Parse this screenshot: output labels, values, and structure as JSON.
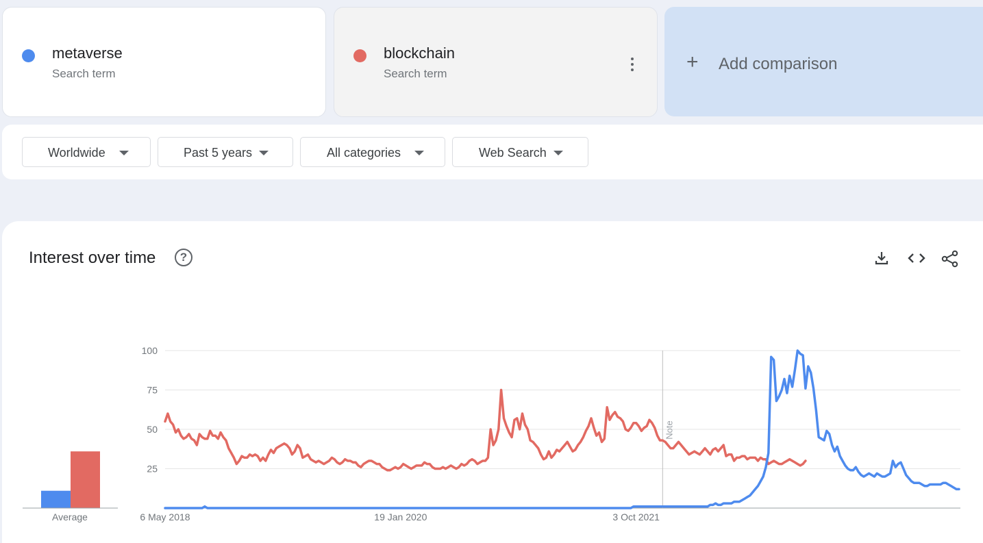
{
  "terms": [
    {
      "name": "metaverse",
      "subtitle": "Search term",
      "color": "#4e8bee"
    },
    {
      "name": "blockchain",
      "subtitle": "Search term",
      "color": "#e26a62"
    }
  ],
  "add_comparison": {
    "label": "Add comparison",
    "icon": "plus-icon"
  },
  "filters": [
    {
      "label": "Worldwide",
      "icon": "caret-down-icon"
    },
    {
      "label": "Past 5 years",
      "icon": "caret-down-icon"
    },
    {
      "label": "All categories",
      "icon": "caret-down-icon"
    },
    {
      "label": "Web Search",
      "icon": "caret-down-icon"
    }
  ],
  "panel": {
    "title": "Interest over time",
    "icons": [
      "help-icon",
      "download-icon",
      "embed-code-icon",
      "share-icon"
    ]
  },
  "chart_data": [
    {
      "type": "bar",
      "categories": [
        "metaverse",
        "blockchain"
      ],
      "values": [
        11,
        36
      ],
      "xlabel": "Average",
      "colors": [
        "#4e8bee",
        "#e26a62"
      ]
    },
    {
      "type": "line",
      "ylim": [
        0,
        100
      ],
      "y_ticks": [
        25,
        50,
        75,
        100
      ],
      "x_tick_labels": [
        "6 May 2018",
        "19 Jan 2020",
        "3 Oct 2021"
      ],
      "x_tick_index": [
        0,
        89,
        178
      ],
      "annotation": {
        "label": "Note",
        "index": 188
      },
      "grid": true,
      "series": [
        {
          "name": "metaverse",
          "color": "#4e8bee",
          "values": [
            0,
            0,
            0,
            0,
            0,
            0,
            0,
            0,
            0,
            0,
            0,
            0,
            0,
            0,
            0,
            1,
            0,
            0,
            0,
            0,
            0,
            0,
            0,
            0,
            0,
            0,
            0,
            0,
            0,
            0,
            0,
            0,
            0,
            0,
            0,
            0,
            0,
            0,
            0,
            0,
            0,
            0,
            0,
            0,
            0,
            0,
            0,
            0,
            0,
            0,
            0,
            0,
            0,
            0,
            0,
            0,
            0,
            0,
            0,
            0,
            0,
            0,
            0,
            0,
            0,
            0,
            0,
            0,
            0,
            0,
            0,
            0,
            0,
            0,
            0,
            0,
            0,
            0,
            0,
            0,
            0,
            0,
            0,
            0,
            0,
            0,
            0,
            0,
            0,
            0,
            0,
            0,
            0,
            0,
            0,
            0,
            0,
            0,
            0,
            0,
            0,
            0,
            0,
            0,
            0,
            0,
            0,
            0,
            0,
            0,
            0,
            0,
            0,
            0,
            0,
            0,
            0,
            0,
            0,
            0,
            0,
            0,
            0,
            0,
            0,
            0,
            0,
            0,
            0,
            0,
            0,
            0,
            0,
            0,
            0,
            0,
            0,
            0,
            0,
            0,
            0,
            0,
            0,
            0,
            0,
            0,
            0,
            0,
            0,
            0,
            0,
            0,
            0,
            0,
            0,
            0,
            0,
            0,
            0,
            0,
            0,
            0,
            0,
            0,
            0,
            0,
            0,
            0,
            0,
            0,
            0,
            0,
            0,
            0,
            0,
            0,
            0,
            1,
            1,
            1,
            1,
            1,
            1,
            1,
            1,
            1,
            1,
            1,
            1,
            1,
            1,
            1,
            1,
            1,
            1,
            1,
            1,
            1,
            1,
            1,
            1,
            1,
            1,
            1,
            1,
            1,
            2,
            2,
            3,
            2,
            2,
            3,
            3,
            3,
            3,
            4,
            4,
            4,
            5,
            6,
            7,
            8,
            10,
            12,
            14,
            17,
            20,
            26,
            35,
            96,
            94,
            68,
            71,
            75,
            82,
            73,
            84,
            77,
            88,
            100,
            98,
            97,
            76,
            90,
            86,
            76,
            62,
            45,
            44,
            43,
            49,
            47,
            40,
            36,
            39,
            33,
            30,
            27,
            25,
            24,
            24,
            26,
            23,
            21,
            20,
            21,
            22,
            21,
            20,
            22,
            21,
            20,
            20,
            21,
            22,
            30,
            26,
            28,
            29,
            25,
            21,
            19,
            17,
            16,
            16,
            16,
            15,
            14,
            14,
            15,
            15,
            15,
            15,
            15,
            16,
            16,
            15,
            14,
            13,
            12,
            12
          ],
          "_note": "Weekly relative interest; values approximated from chart."
        },
        {
          "name": "blockchain",
          "color": "#e26a62",
          "values": [
            55,
            60,
            55,
            53,
            48,
            50,
            46,
            44,
            45,
            47,
            44,
            43,
            40,
            47,
            45,
            44,
            44,
            49,
            46,
            46,
            44,
            48,
            45,
            43,
            38,
            35,
            32,
            28,
            30,
            33,
            32,
            32,
            34,
            33,
            34,
            33,
            30,
            32,
            30,
            34,
            37,
            35,
            38,
            39,
            40,
            41,
            40,
            38,
            34,
            36,
            40,
            38,
            32,
            33,
            34,
            31,
            30,
            29,
            30,
            29,
            28,
            29,
            30,
            32,
            31,
            29,
            28,
            29,
            31,
            30,
            30,
            29,
            29,
            27,
            26,
            28,
            29,
            30,
            30,
            29,
            28,
            28,
            26,
            25,
            24,
            24,
            25,
            26,
            25,
            26,
            28,
            27,
            26,
            25,
            26,
            27,
            27,
            27,
            29,
            28,
            28,
            26,
            25,
            25,
            25,
            26,
            25,
            26,
            27,
            26,
            25,
            26,
            28,
            27,
            28,
            30,
            31,
            30,
            28,
            29,
            30,
            30,
            32,
            50,
            40,
            43,
            50,
            75,
            57,
            52,
            48,
            45,
            56,
            57,
            50,
            60,
            53,
            50,
            43,
            42,
            40,
            38,
            34,
            31,
            32,
            36,
            32,
            34,
            37,
            36,
            38,
            40,
            42,
            39,
            36,
            37,
            40,
            42,
            45,
            49,
            52,
            57,
            51,
            46,
            48,
            42,
            44,
            64,
            56,
            59,
            61,
            58,
            57,
            55,
            50,
            49,
            51,
            54,
            54,
            52,
            49,
            51,
            52,
            56,
            54,
            51,
            46,
            43,
            43,
            42,
            40,
            38,
            38,
            40,
            42,
            40,
            38,
            36,
            34,
            35,
            36,
            35,
            34,
            36,
            38,
            36,
            34,
            37,
            38,
            36,
            38,
            40,
            33,
            34,
            34,
            30,
            32,
            32,
            33,
            33,
            31,
            32,
            32,
            32,
            30,
            32,
            31,
            31,
            28,
            29,
            30,
            29,
            28,
            28,
            29,
            30,
            31,
            30,
            29,
            28,
            27,
            28,
            30
          ]
        }
      ]
    }
  ]
}
